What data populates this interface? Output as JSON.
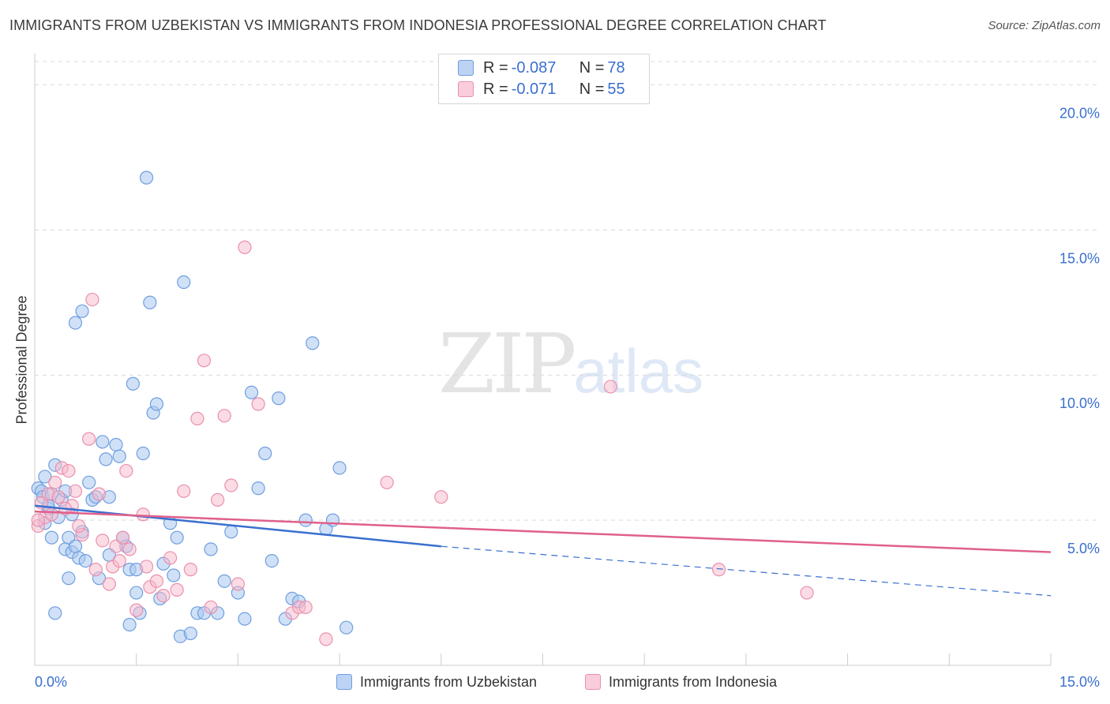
{
  "header": {
    "title": "IMMIGRANTS FROM UZBEKISTAN VS IMMIGRANTS FROM INDONESIA PROFESSIONAL DEGREE CORRELATION CHART",
    "source": "Source: ZipAtlas.com"
  },
  "stats_legend": {
    "rows": [
      {
        "r_label": "R = ",
        "r_value": "-0.087",
        "n_label": "N = ",
        "n_value": "78"
      },
      {
        "r_label": "R = ",
        "r_value": "-0.071",
        "n_label": "N = ",
        "n_value": "55"
      }
    ]
  },
  "watermark": {
    "zip": "ZIP",
    "atlas": "atlas"
  },
  "colors": {
    "uzbekistan_fill": "#a9c8f0",
    "uzbekistan_stroke": "#6f9ee0",
    "uzbekistan_line": "#3a6fcf",
    "indonesia_fill": "#f7b9cb",
    "indonesia_stroke": "#ea8fad",
    "indonesia_line": "#e0608a",
    "grid": "#d9d9d9",
    "tick_label": "#3a6fcf"
  },
  "chart_data": {
    "type": "scatter",
    "title": "IMMIGRANTS FROM UZBEKISTAN VS IMMIGRANTS FROM INDONESIA PROFESSIONAL DEGREE CORRELATION CHART",
    "xlabel": "",
    "ylabel": "Professional Degree",
    "xlim": [
      0,
      15
    ],
    "ylim": [
      0,
      20.8
    ],
    "x_tick_labels": [
      "0.0%",
      "15.0%"
    ],
    "y_ticks": [
      5,
      10,
      15,
      20
    ],
    "y_tick_labels": [
      "5.0%",
      "10.0%",
      "15.0%",
      "20.0%"
    ],
    "grid": true,
    "legend_position": "bottom",
    "series": [
      {
        "name": "Immigrants from Uzbekistan",
        "r": -0.087,
        "n": 78,
        "trend": {
          "x": [
            0,
            6.0,
            15
          ],
          "y": [
            5.5,
            4.1,
            2.4
          ],
          "solid_until_x": 6.0
        },
        "points": [
          [
            0.05,
            6.1
          ],
          [
            0.1,
            6.0
          ],
          [
            0.12,
            5.8
          ],
          [
            0.15,
            6.5
          ],
          [
            0.2,
            5.4
          ],
          [
            0.25,
            5.9
          ],
          [
            0.3,
            6.9
          ],
          [
            0.35,
            5.1
          ],
          [
            0.4,
            5.7
          ],
          [
            0.45,
            4.0
          ],
          [
            0.5,
            4.4
          ],
          [
            0.55,
            3.9
          ],
          [
            0.6,
            4.1
          ],
          [
            0.65,
            3.7
          ],
          [
            0.7,
            4.6
          ],
          [
            0.75,
            3.6
          ],
          [
            0.8,
            6.3
          ],
          [
            0.85,
            5.7
          ],
          [
            0.9,
            5.8
          ],
          [
            1.0,
            7.7
          ],
          [
            1.05,
            7.1
          ],
          [
            1.1,
            5.8
          ],
          [
            1.2,
            7.6
          ],
          [
            1.25,
            7.2
          ],
          [
            1.3,
            4.4
          ],
          [
            1.35,
            4.1
          ],
          [
            1.4,
            3.3
          ],
          [
            1.45,
            9.7
          ],
          [
            1.5,
            2.5
          ],
          [
            1.55,
            1.8
          ],
          [
            1.6,
            7.3
          ],
          [
            1.65,
            16.8
          ],
          [
            1.7,
            12.5
          ],
          [
            1.75,
            8.7
          ],
          [
            1.8,
            9.0
          ],
          [
            1.9,
            3.5
          ],
          [
            2.0,
            4.9
          ],
          [
            2.05,
            3.1
          ],
          [
            2.1,
            4.4
          ],
          [
            2.15,
            1.0
          ],
          [
            2.2,
            13.2
          ],
          [
            2.3,
            1.1
          ],
          [
            2.4,
            1.8
          ],
          [
            2.5,
            1.8
          ],
          [
            2.6,
            4.0
          ],
          [
            2.7,
            1.8
          ],
          [
            2.8,
            2.9
          ],
          [
            2.9,
            4.6
          ],
          [
            3.0,
            2.5
          ],
          [
            3.1,
            1.6
          ],
          [
            3.2,
            9.4
          ],
          [
            3.3,
            6.1
          ],
          [
            3.4,
            7.3
          ],
          [
            3.5,
            3.6
          ],
          [
            3.6,
            9.2
          ],
          [
            3.7,
            1.6
          ],
          [
            3.8,
            2.3
          ],
          [
            3.9,
            2.2
          ],
          [
            4.0,
            5.0
          ],
          [
            4.1,
            11.1
          ],
          [
            4.3,
            4.7
          ],
          [
            4.4,
            5.0
          ],
          [
            4.5,
            6.8
          ],
          [
            4.6,
            1.3
          ],
          [
            1.4,
            1.4
          ],
          [
            0.5,
            3.0
          ],
          [
            0.3,
            1.8
          ],
          [
            0.25,
            4.4
          ],
          [
            0.7,
            12.2
          ],
          [
            0.6,
            11.8
          ],
          [
            0.45,
            6.0
          ],
          [
            0.55,
            5.2
          ],
          [
            0.95,
            3.0
          ],
          [
            0.2,
            5.5
          ],
          [
            1.1,
            3.8
          ],
          [
            0.15,
            4.9
          ],
          [
            1.5,
            3.3
          ],
          [
            1.85,
            2.3
          ]
        ]
      },
      {
        "name": "Immigrants from Indonesia",
        "r": -0.071,
        "n": 55,
        "trend": {
          "x": [
            0,
            15
          ],
          "y": [
            5.3,
            3.9
          ]
        },
        "points": [
          [
            0.05,
            4.8
          ],
          [
            0.1,
            5.6
          ],
          [
            0.15,
            5.1
          ],
          [
            0.2,
            5.9
          ],
          [
            0.3,
            6.3
          ],
          [
            0.35,
            5.8
          ],
          [
            0.4,
            6.8
          ],
          [
            0.5,
            6.7
          ],
          [
            0.55,
            5.5
          ],
          [
            0.6,
            6.0
          ],
          [
            0.7,
            4.5
          ],
          [
            0.8,
            7.8
          ],
          [
            0.85,
            12.6
          ],
          [
            0.9,
            3.3
          ],
          [
            0.95,
            5.9
          ],
          [
            1.0,
            4.3
          ],
          [
            1.1,
            2.8
          ],
          [
            1.15,
            3.4
          ],
          [
            1.2,
            4.1
          ],
          [
            1.3,
            4.4
          ],
          [
            1.35,
            6.7
          ],
          [
            1.4,
            4.0
          ],
          [
            1.5,
            1.9
          ],
          [
            1.6,
            5.2
          ],
          [
            1.65,
            3.4
          ],
          [
            1.7,
            2.7
          ],
          [
            1.8,
            2.9
          ],
          [
            1.9,
            2.4
          ],
          [
            2.0,
            3.7
          ],
          [
            2.1,
            2.6
          ],
          [
            2.2,
            6.0
          ],
          [
            2.3,
            3.3
          ],
          [
            2.4,
            8.5
          ],
          [
            2.5,
            10.5
          ],
          [
            2.6,
            2.0
          ],
          [
            2.7,
            5.7
          ],
          [
            2.8,
            8.6
          ],
          [
            2.9,
            6.2
          ],
          [
            3.0,
            2.8
          ],
          [
            3.1,
            14.4
          ],
          [
            3.3,
            9.0
          ],
          [
            3.8,
            1.8
          ],
          [
            3.9,
            2.0
          ],
          [
            4.0,
            2.0
          ],
          [
            4.3,
            0.9
          ],
          [
            5.2,
            6.3
          ],
          [
            6.0,
            5.8
          ],
          [
            8.5,
            9.6
          ],
          [
            10.1,
            3.3
          ],
          [
            11.4,
            2.5
          ],
          [
            0.25,
            5.2
          ],
          [
            0.45,
            5.4
          ],
          [
            0.65,
            4.8
          ],
          [
            1.25,
            3.6
          ],
          [
            0.05,
            5.0
          ]
        ]
      }
    ]
  }
}
